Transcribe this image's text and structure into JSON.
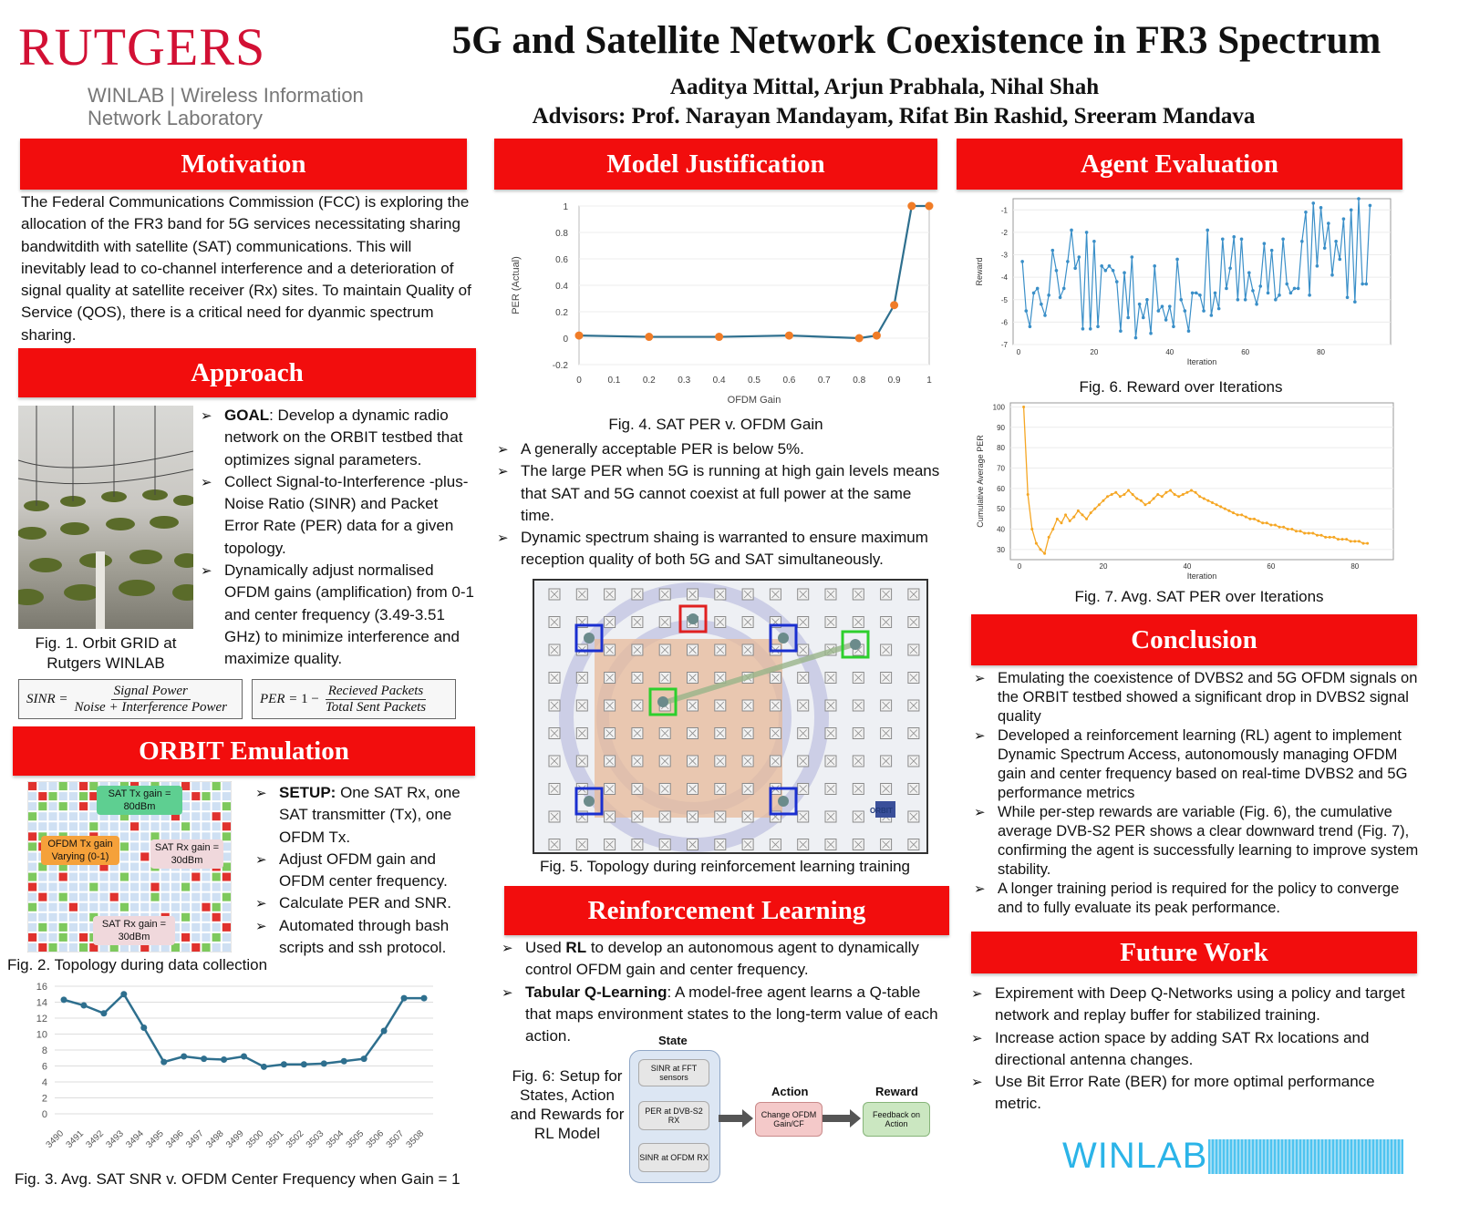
{
  "header": {
    "logo": "RUTGERS",
    "winlab_tagline_1": "WINLAB | Wireless Information",
    "winlab_tagline_2": "Network Laboratory",
    "title": "5G and Satellite Network Coexistence in FR3 Spectrum",
    "authors": "Aaditya Mittal, Arjun Prabhala, Nihal Shah",
    "advisors": "Advisors: Prof. Narayan Mandayam, Rifat Bin Rashid, Sreeram Mandava"
  },
  "motivation": {
    "heading": "Motivation",
    "text": "The Federal Communications Commission (FCC) is exploring the allocation of the FR3 band for 5G services necessitating sharing bandwitdith with satellite (SAT) communications. This will inevitably lead to co-channel interference and a deterioration of signal quality at satellite receiver (Rx) sites. To maintain Quality of Service (QOS), there is a critical need for dyanmic spectrum sharing."
  },
  "approach": {
    "heading": "Approach",
    "goal_label": "GOAL",
    "goal_text": ": Develop a dynamic radio network on the ORBIT testbed that optimizes signal parameters.",
    "bullet2": "Collect Signal-to-Interference -plus-Noise Ratio (SINR) and Packet Error Rate (PER) data for a given topology.",
    "bullet3": "Dynamically adjust normalised OFDM gains (amplification) from 0-1 and center frequency (3.49-3.51 GHz) to minimize interference and maximize quality.",
    "fig1_caption": "Fig. 1. Orbit GRID at Rutgers WINLAB",
    "sinr_lhs": "SINR",
    "sinr_num": "Signal Power",
    "sinr_den": "Noise + Interference Power",
    "per_lhs": "PER",
    "per_one": "1 −",
    "per_num": "Recieved Packets",
    "per_den": "Total Sent Packets"
  },
  "orbit": {
    "heading": "ORBIT Emulation",
    "setup_label": "SETUP:",
    "setup_text": " One SAT Rx, one SAT transmitter (Tx), one OFDM Tx.",
    "bullet2": "Adjust OFDM gain and OFDM center frequency.",
    "bullet3": "Calculate PER and SNR.",
    "bullet4": "Automated through bash scripts and ssh protocol.",
    "label_sat_tx": "SAT Tx gain = 80dBm",
    "label_ofdm_tx": "OFDM Tx gain Varying (0-1)",
    "label_sat_rx1": "SAT Rx gain = 30dBm",
    "label_sat_rx2": "SAT Rx gain = 30dBm",
    "fig2_caption": "Fig. 2. Topology during data collection",
    "fig3_caption": "Fig. 3. Avg. SAT SNR v. OFDM Center Frequency when Gain = 1"
  },
  "model": {
    "heading": "Model Justification",
    "fig4_caption": "Fig. 4. SAT PER v. OFDM Gain",
    "bullet1": "A generally acceptable PER is below 5%.",
    "bullet2": "The large PER when 5G is running at high gain levels means that SAT and 5G cannot coexist at full power at the same time.",
    "bullet3": "Dynamic spectrum shaing is warranted to ensure maximum reception quality of both 5G and SAT simultaneously.",
    "fig5_caption": "Fig. 5. Topology during reinforcement learning training",
    "fig5_logo": "ORBIT"
  },
  "rl": {
    "heading": "Reinforcement Learning",
    "bullet1_pre": "Used ",
    "bullet1_bold": "RL",
    "bullet1_post": " to develop an autonomous agent to dynamically control OFDM gain and center frequency.",
    "bullet2_bold": "Tabular Q-Learning",
    "bullet2_post": ": A model-free agent learns a Q-table that maps environment states to the long-term value of each action.",
    "fig6_caption": "Fig. 6: Setup for States, Action and Rewards for RL Model",
    "state_title": "State",
    "state1": "SINR at FFT sensors",
    "state2": "PER at DVB-S2 RX",
    "state3": "SINR at OFDM RX",
    "action_title": "Action",
    "action_box": "Change OFDM Gain/CF",
    "reward_title": "Reward",
    "reward_box": "Feedback on Action"
  },
  "agent": {
    "heading": "Agent Evaluation",
    "fig6_caption": "Fig. 6. Reward over Iterations",
    "fig7_caption": "Fig. 7. Avg. SAT PER over Iterations"
  },
  "conclusion": {
    "heading": "Conclusion",
    "bullet1": "Emulating the coexistence of DVBS2 and 5G OFDM signals on the ORBIT testbed showed a significant drop in DVBS2 signal quality",
    "bullet2": "Developed a reinforcement learning (RL) agent to implement Dynamic Spectrum Access, autonomously managing OFDM gain and center frequency based on real-time DVBS2 and 5G performance metrics",
    "bullet3": "While per-step rewards are variable (Fig. 6), the cumulative average DVB-S2 PER shows a clear downward trend (Fig. 7), confirming the agent is successfully learning to improve system stability.",
    "bullet4": "A longer training period is required for the policy to converge and to fully evaluate its peak performance."
  },
  "future": {
    "heading": "Future Work",
    "bullet1": "Expirement with Deep Q-Networks using a policy and target network and replay buffer for stabilized training.",
    "bullet2": "Increase action space by adding SAT Rx locations and directional antenna changes.",
    "bullet3": "Use Bit Error Rate (BER) for more optimal performance metric.",
    "winlab_logo": "WINLAB"
  },
  "colors": {
    "banner": "#f20d0d",
    "line_blue": "#2e6f8e",
    "marker_orange": "#f07c27",
    "reward_blue": "#3a8fc8",
    "per_orange": "#f5a623"
  },
  "chart_data": [
    {
      "type": "line",
      "title": "",
      "xlabel": "",
      "ylabel": "",
      "categories": [
        "3490",
        "3491",
        "3492",
        "3493",
        "3494",
        "3495",
        "3496",
        "3497",
        "3498",
        "3499",
        "3500",
        "3501",
        "3502",
        "3503",
        "3504",
        "3505",
        "3506",
        "3507",
        "3508"
      ],
      "values": [
        14.3,
        13.6,
        12.6,
        15.0,
        10.8,
        6.5,
        7.2,
        6.9,
        6.8,
        7.2,
        5.9,
        6.2,
        6.2,
        6.3,
        6.6,
        6.9,
        10.4,
        14.5,
        14.5
      ],
      "ylim": [
        0,
        16
      ],
      "yticks": [
        0,
        2,
        4,
        6,
        8,
        10,
        12,
        14,
        16
      ]
    },
    {
      "type": "line",
      "title": "",
      "xlabel": "OFDM Gain",
      "ylabel": "PER (Actual)",
      "x": [
        0,
        0.2,
        0.4,
        0.6,
        0.8,
        0.85,
        0.9,
        0.95,
        1.0
      ],
      "values": [
        0.02,
        0.01,
        0.01,
        0.02,
        0.0,
        0.02,
        0.25,
        1.0,
        1.0
      ],
      "xlim": [
        0,
        1
      ],
      "ylim": [
        -0.2,
        1.0
      ],
      "xticks": [
        "0",
        "0.1",
        "0.2",
        "0.3",
        "0.4",
        "0.5",
        "0.6",
        "0.7",
        "0.8",
        "0.9",
        "1"
      ],
      "yticks": [
        "-0.2",
        "0",
        "0.2",
        "0.4",
        "0.6",
        "0.8",
        "1"
      ]
    },
    {
      "type": "line",
      "title": "",
      "xlabel": "Iteration",
      "ylabel": "Reward",
      "x_start": 1,
      "values": [
        -3.3,
        -5.5,
        -6.2,
        -4.7,
        -4.5,
        -5.2,
        -5.7,
        -4.8,
        -2.8,
        -3.7,
        -4.9,
        -4.5,
        -3.3,
        -1.9,
        -3.6,
        -3.1,
        -6.3,
        -2.0,
        -6.3,
        -2.4,
        -6.2,
        -3.5,
        -3.7,
        -3.5,
        -3.7,
        -4.2,
        -6.4,
        -3.8,
        -5.8,
        -3.1,
        -6.7,
        -5.2,
        -5.8,
        -5.0,
        -6.5,
        -3.5,
        -5.5,
        -5.3,
        -5.9,
        -5.3,
        -6.2,
        -3.2,
        -5.0,
        -5.5,
        -6.4,
        -4.7,
        -4.7,
        -4.8,
        -5.5,
        -1.9,
        -5.7,
        -4.7,
        -5.4,
        -2.3,
        -4.5,
        -3.6,
        -2.2,
        -5.0,
        -2.3,
        -5.0,
        -3.8,
        -4.6,
        -5.2,
        -4.4,
        -2.5,
        -4.7,
        -2.8,
        -5.0,
        -4.8,
        -2.3,
        -4.3,
        -4.7,
        -4.5,
        -4.5,
        -2.4,
        -1.1,
        -4.8,
        -0.7,
        -3.5,
        -0.9,
        -2.7,
        -1.6,
        -3.9,
        -2.4,
        -3.2,
        -1.4,
        -4.9,
        -1.0,
        -5.1,
        -0.5,
        -4.3,
        -4.3,
        -0.8
      ],
      "ylim": [
        -7,
        -0.5
      ],
      "yticks": [
        "-7",
        "-6",
        "-5",
        "-4",
        "-3",
        "-2",
        "-1"
      ],
      "xticks": [
        "0",
        "20",
        "40",
        "60",
        "80"
      ]
    },
    {
      "type": "line",
      "title": "",
      "xlabel": "Iteration",
      "ylabel": "Cumulative Average PER",
      "x_start": 1,
      "values": [
        100,
        57,
        40,
        33,
        30,
        28,
        36,
        40,
        45,
        43,
        47,
        44,
        46,
        49,
        47,
        45,
        48,
        50,
        52,
        54,
        56,
        57,
        58,
        56,
        57,
        59,
        57,
        55,
        54,
        52,
        53,
        55,
        57,
        56,
        58,
        59,
        57,
        56,
        57,
        58,
        59,
        58,
        56,
        55,
        54,
        53,
        52,
        51,
        50,
        49,
        48,
        47,
        47,
        46,
        45,
        45,
        44,
        43,
        43,
        42,
        42,
        41,
        41,
        40,
        40,
        39,
        39,
        38,
        38,
        38,
        37,
        37,
        36,
        36,
        36,
        35,
        35,
        35,
        34,
        34,
        34,
        33,
        33
      ],
      "ylim": [
        25,
        100
      ],
      "yticks": [
        "30",
        "40",
        "50",
        "60",
        "70",
        "80",
        "90",
        "100"
      ],
      "xticks": [
        "0",
        "20",
        "40",
        "60",
        "80"
      ]
    }
  ]
}
